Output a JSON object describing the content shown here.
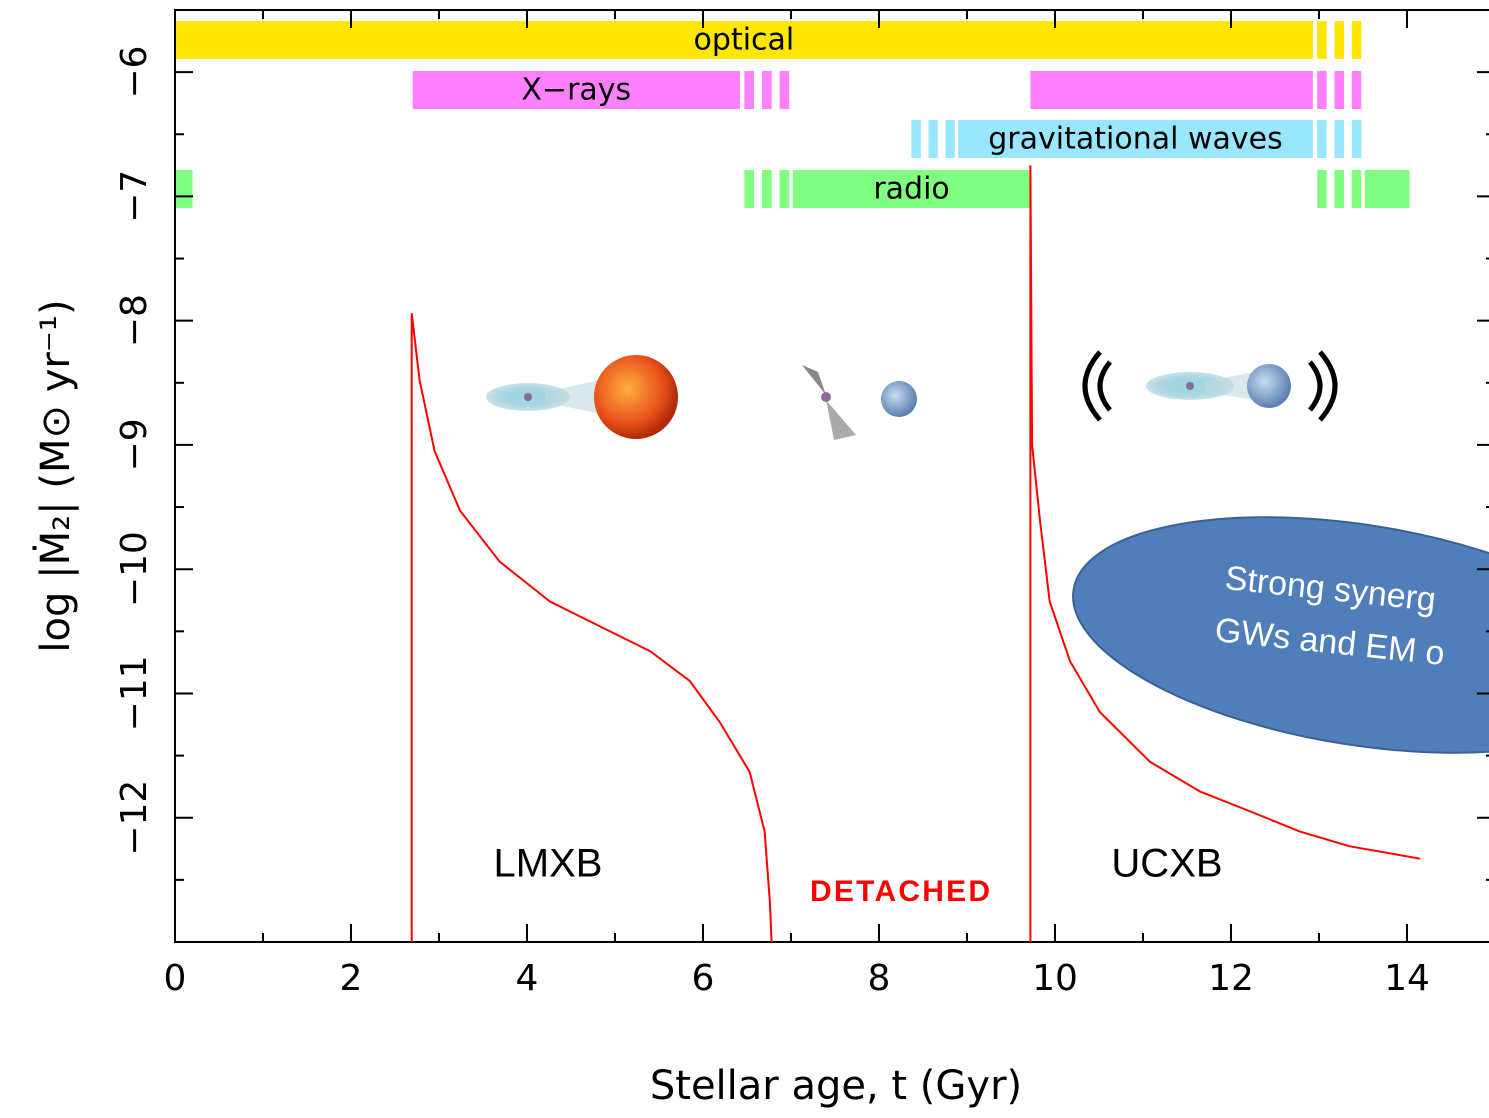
{
  "chart_data": {
    "type": "line",
    "xlabel": "Stellar age, t  (Gyr)",
    "ylabel": "log |Ṁ₂|  (M⊙ yr⁻¹)",
    "xlim": [
      0,
      15
    ],
    "ylim": [
      -13,
      -5.5
    ],
    "xticks": [
      0,
      2,
      4,
      6,
      8,
      10,
      12,
      14
    ],
    "xticks_minor": [
      1,
      3,
      5,
      7,
      9,
      11,
      13
    ],
    "yticks": [
      {
        "value": -6,
        "label": "−6"
      },
      {
        "value": -7,
        "label": "−7"
      },
      {
        "value": -8,
        "label": "−8"
      },
      {
        "value": -9,
        "label": "−9"
      },
      {
        "value": -10,
        "label": "−10"
      },
      {
        "value": -11,
        "label": "−11"
      },
      {
        "value": -12,
        "label": "−12"
      }
    ],
    "yticks_minor": [
      -6.5,
      -7.5,
      -8.5,
      -9.5,
      -10.5,
      -11.5,
      -12.5
    ],
    "series": [
      {
        "color": "#ff0000",
        "x": [
          2.69,
          2.69,
          2.78,
          2.95,
          3.24,
          3.69,
          4.26,
          4.83,
          5.4,
          5.85,
          6.19,
          6.53,
          6.7,
          6.76,
          6.78,
          null,
          9.72,
          9.72,
          9.74,
          9.83,
          9.94,
          10.17,
          10.51,
          11.08,
          11.65,
          12.22,
          12.78,
          13.35,
          14.15
        ],
        "values": [
          -13,
          -7.94,
          -8.48,
          -9.05,
          -9.53,
          -9.94,
          -10.26,
          -10.46,
          -10.66,
          -10.9,
          -11.23,
          -11.63,
          -12.11,
          -12.68,
          -13,
          null,
          -13,
          -6.75,
          -9.0,
          -9.61,
          -10.26,
          -10.74,
          -11.15,
          -11.55,
          -11.79,
          -11.95,
          -12.11,
          -12.23,
          -12.33
        ]
      }
    ],
    "bands": [
      {
        "label": "optical",
        "color": "#ffe600",
        "segments": [
          {
            "start": 0,
            "end": 12.93,
            "style": "solid"
          },
          {
            "start": 12.93,
            "end": 13.52,
            "style": "dashed"
          }
        ]
      },
      {
        "label": "X−rays",
        "color": "#ff80ff",
        "segments": [
          {
            "start": 2.7,
            "end": 6.42,
            "style": "solid"
          },
          {
            "start": 6.42,
            "end": 7.02,
            "style": "dashed"
          },
          {
            "start": 9.72,
            "end": 12.93,
            "style": "solid"
          },
          {
            "start": 12.93,
            "end": 13.52,
            "style": "dashed"
          }
        ]
      },
      {
        "label": "gravitational waves",
        "color": "#99e6ff",
        "segments": [
          {
            "start": 8.32,
            "end": 8.9,
            "style": "dashed"
          },
          {
            "start": 8.9,
            "end": 12.93,
            "style": "solid"
          },
          {
            "start": 12.93,
            "end": 13.52,
            "style": "dashed"
          }
        ]
      },
      {
        "label": "radio",
        "color": "#80ff80",
        "segments": [
          {
            "start": 0,
            "end": 0.2,
            "style": "solid"
          },
          {
            "start": 6.42,
            "end": 7.02,
            "style": "dashed"
          },
          {
            "start": 7.02,
            "end": 9.72,
            "style": "solid"
          },
          {
            "start": 12.93,
            "end": 13.52,
            "style": "dashed"
          },
          {
            "start": 13.52,
            "end": 14.03,
            "style": "solid"
          }
        ]
      }
    ],
    "annotations": {
      "lmxb": "LMXB",
      "ucxb": "UCXB",
      "detached": "DETACHED",
      "synergy_1": "Strong synerg",
      "synergy_2": "GWs and EM o"
    }
  }
}
